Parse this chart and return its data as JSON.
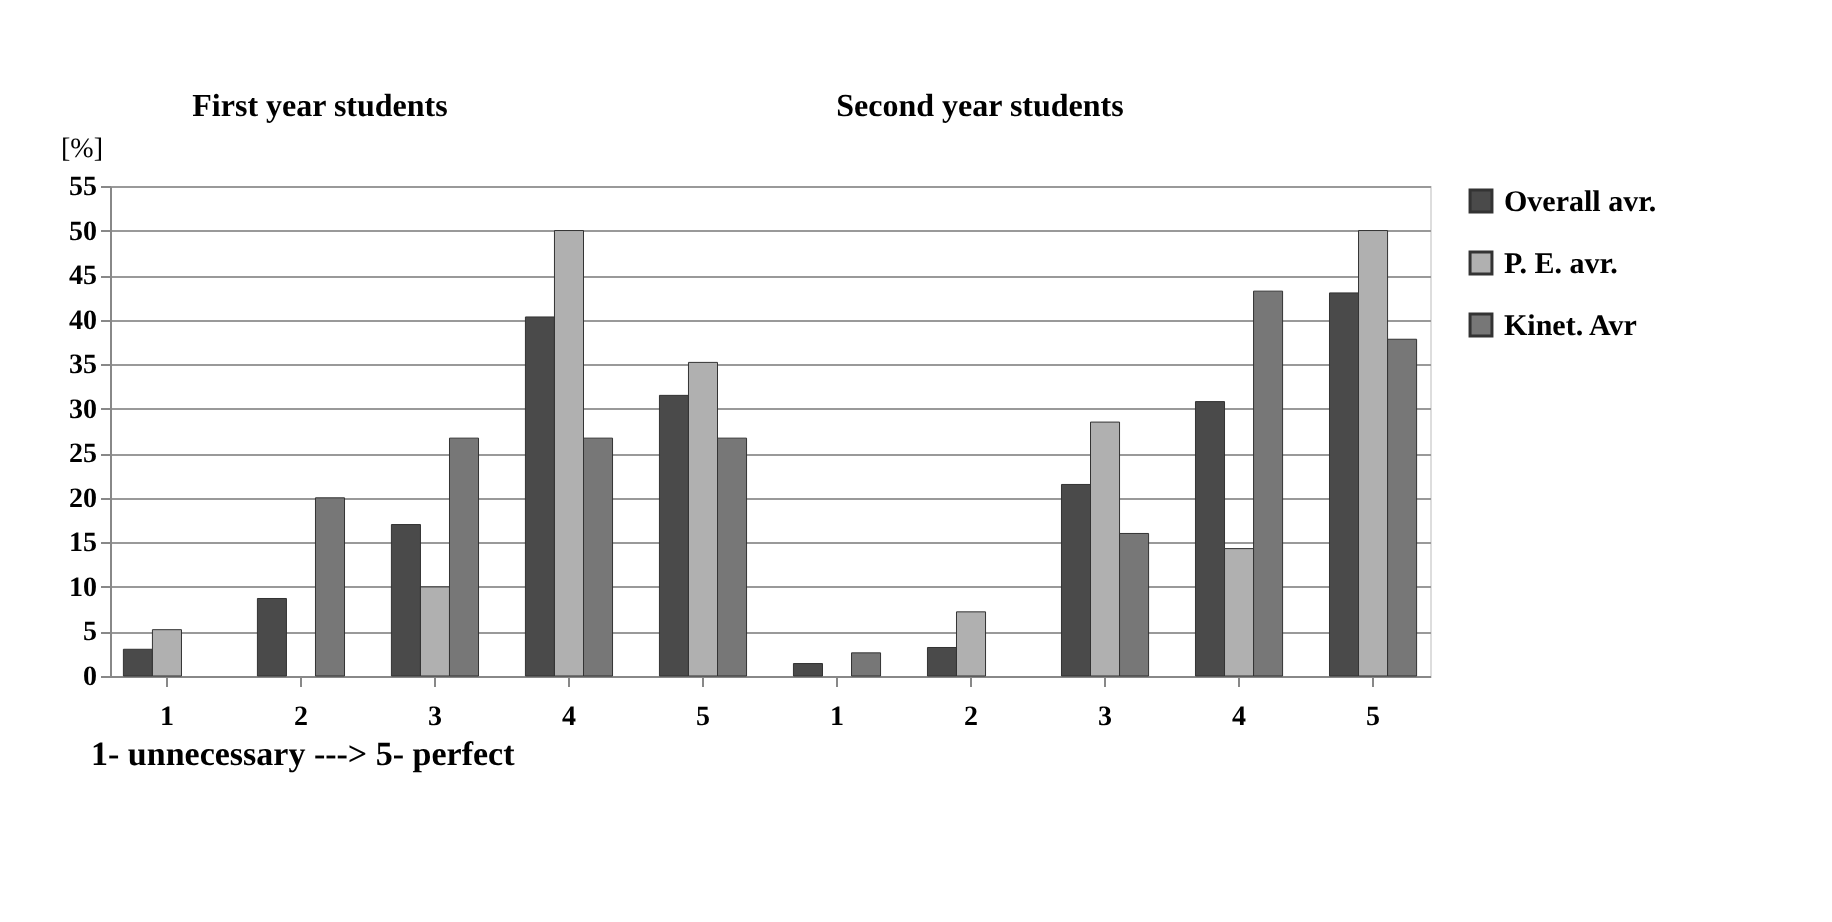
{
  "chart_data": {
    "type": "bar",
    "categories": [
      "1",
      "2",
      "3",
      "4",
      "5",
      "1",
      "2",
      "3",
      "4",
      "5"
    ],
    "xlabel": "1- unnecessary ---> 5- perfect",
    "ylabel": "[%]",
    "annotations": [
      "First year students",
      "Second year students"
    ],
    "series": [
      {
        "name": "Overall avr.",
        "color": "#4a4a4a",
        "values": [
          3,
          8.7,
          17,
          40.3,
          31.5,
          1.4,
          3.2,
          21.5,
          30.8,
          43
        ]
      },
      {
        "name": "P. E. avr.",
        "color": "#b0b0b0",
        "values": [
          5.2,
          null,
          10,
          50,
          35.2,
          null,
          7.2,
          28.5,
          14.3,
          50
        ]
      },
      {
        "name": "Kinet. Avr",
        "color": "#777777",
        "values": [
          null,
          20,
          26.7,
          26.7,
          26.7,
          2.6,
          null,
          16,
          43.2,
          37.8
        ]
      }
    ],
    "ylim": [
      0,
      55
    ],
    "yticks": [
      0,
      5,
      10,
      15,
      20,
      25,
      30,
      35,
      40,
      45,
      50,
      55
    ],
    "grid": "y",
    "legend": "right"
  }
}
